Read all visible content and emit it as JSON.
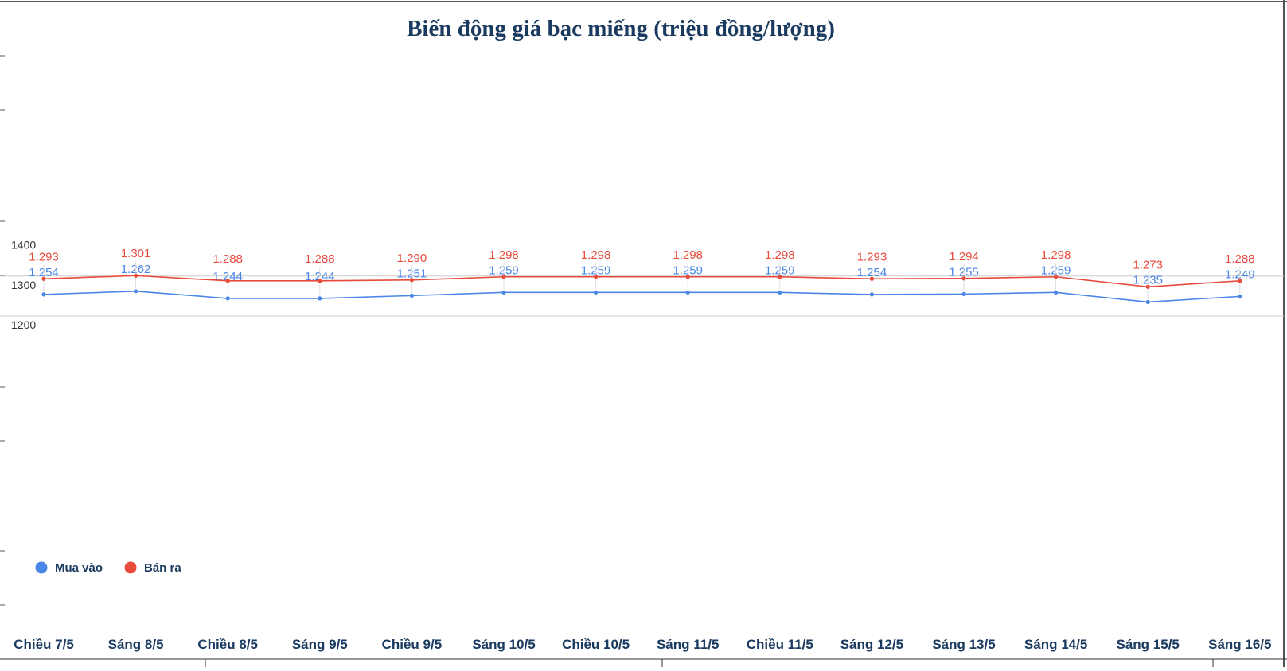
{
  "chart_data": {
    "type": "line",
    "title": "Biến động giá bạc miếng (triệu đồng/lượng)",
    "xlabel": "",
    "ylabel": "",
    "categories": [
      "Chiều 7/5",
      "Sáng 8/5",
      "Chiều 8/5",
      "Sáng 9/5",
      "Chiều 9/5",
      "Sáng 10/5",
      "Chiều 10/5",
      "Sáng 11/5",
      "Chiều 11/5",
      "Sáng 12/5",
      "Sáng 13/5",
      "Sáng 14/5",
      "Sáng 15/5",
      "Sáng 16/5"
    ],
    "yticks": [
      "1400",
      "1300",
      "1200"
    ],
    "ylim": [
      1100,
      1500
    ],
    "grid": true,
    "legend_position": "bottom-left",
    "series": [
      {
        "name": "Mua vào",
        "color": "#4a86e8",
        "values": [
          1254,
          1262,
          1244,
          1244,
          1251,
          1259,
          1259,
          1259,
          1259,
          1254,
          1255,
          1259,
          1235,
          1249
        ],
        "labels": [
          "1.254",
          "1.262",
          "1.244",
          "1.244",
          "1.251",
          "1.259",
          "1.259",
          "1.259",
          "1.259",
          "1.254",
          "1.255",
          "1.259",
          "1.235",
          "1.249"
        ]
      },
      {
        "name": "Bán ra",
        "color": "#e84a3c",
        "values": [
          1293,
          1301,
          1288,
          1288,
          1290,
          1298,
          1298,
          1298,
          1298,
          1293,
          1294,
          1298,
          1273,
          1288
        ],
        "labels": [
          "1.293",
          "1.301",
          "1.288",
          "1.288",
          "1.290",
          "1.298",
          "1.298",
          "1.298",
          "1.298",
          "1.293",
          "1.294",
          "1.298",
          "1.273",
          "1.288"
        ]
      }
    ]
  }
}
